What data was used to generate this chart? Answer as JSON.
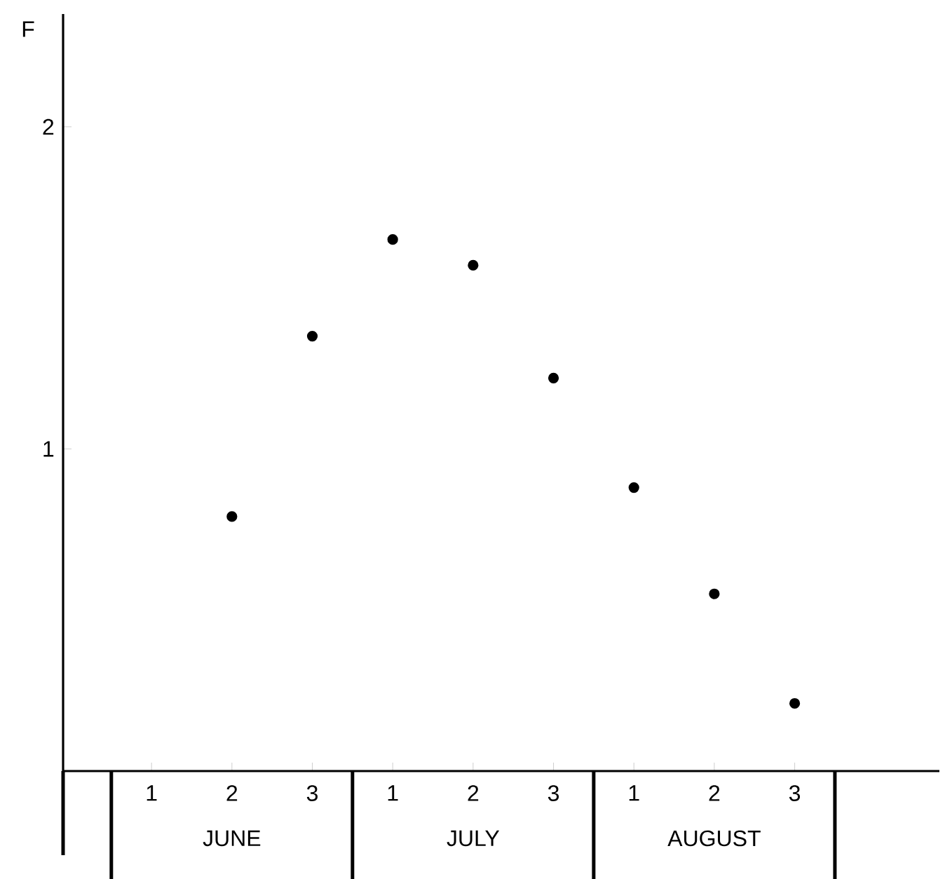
{
  "chart_data": {
    "type": "scatter",
    "ylabel": "F",
    "categories": [
      "1",
      "2",
      "3",
      "1",
      "2",
      "3",
      "1",
      "2",
      "3"
    ],
    "values": [
      null,
      0.79,
      1.35,
      1.65,
      1.57,
      1.22,
      0.88,
      0.55,
      0.21
    ],
    "color": "#000000",
    "ylim": [
      0,
      2.35
    ],
    "yticks": [
      1,
      2
    ],
    "grid": false,
    "annotations": [
      "JUNE",
      "JULY",
      "AUGUST"
    ]
  }
}
